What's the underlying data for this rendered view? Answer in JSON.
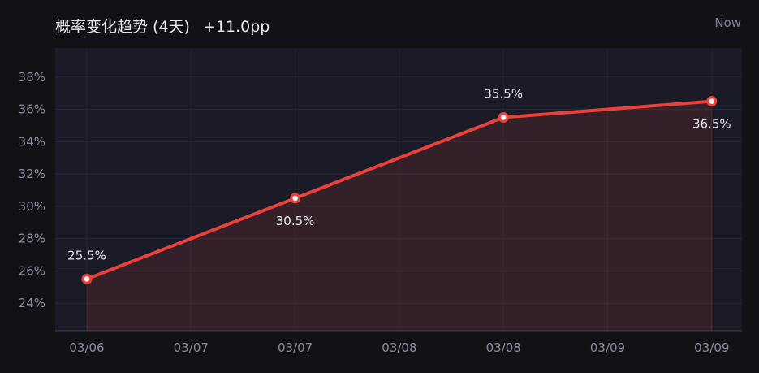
{
  "header": {
    "title": "概率变化趋势 (4天)",
    "change": "+11.0pp",
    "now_label": "Now"
  },
  "colors": {
    "line": "#e8423b",
    "fill": "#e8423b",
    "plot_bg": "#1a1b26",
    "page_bg": "#111216"
  },
  "chart_data": {
    "type": "area",
    "x_tick_labels": [
      "03/06",
      "03/07",
      "03/07",
      "03/08",
      "03/08",
      "03/09",
      "03/09"
    ],
    "points": [
      {
        "x": 0,
        "y": 25.5,
        "label": "25.5%"
      },
      {
        "x": 2,
        "y": 30.5,
        "label": "30.5%"
      },
      {
        "x": 4,
        "y": 35.5,
        "label": "35.5%"
      },
      {
        "x": 6,
        "y": 36.5,
        "label": "36.5%"
      }
    ],
    "y_ticks": [
      24,
      26,
      28,
      30,
      32,
      34,
      36,
      38
    ],
    "y_tick_suffix": "%",
    "ylim": [
      22.3,
      39.8
    ],
    "grid": true,
    "unit": "%"
  }
}
